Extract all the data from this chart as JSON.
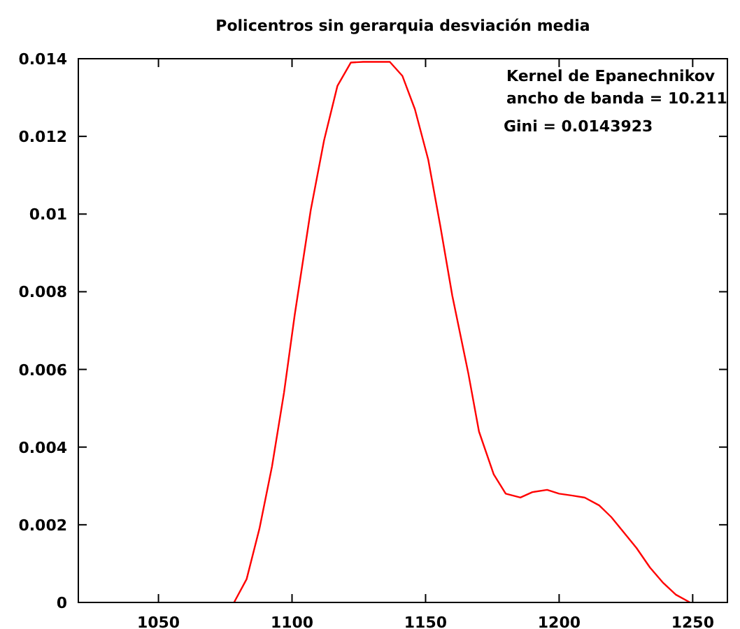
{
  "chart_data": {
    "type": "line",
    "title": "Policentros sin gerarquia desviación media",
    "annotations": [
      "Kernel de Epanechnikov",
      "ancho de banda = 10.211",
      "Gini = 0.0143923"
    ],
    "series": [
      {
        "color": "#ff0000",
        "x": [
          1078.3,
          1083,
          1087.8,
          1092.5,
          1097,
          1101,
          1107,
          1112,
          1117,
          1122,
          1126.6,
          1136.6,
          1141.3,
          1146,
          1151,
          1155.5,
          1160,
          1166,
          1170,
          1175.5,
          1180,
          1185.5,
          1190,
          1195.5,
          1200,
          1205,
          1209.6,
          1215,
          1219.5,
          1229,
          1234,
          1239,
          1243.7,
          1249
        ],
        "values": [
          0,
          0.0006,
          0.0019,
          0.0035,
          0.0054,
          0.0074,
          0.0101,
          0.0119,
          0.0133,
          0.0139,
          0.01392,
          0.01392,
          0.01356,
          0.0127,
          0.0114,
          0.0097,
          0.0079,
          0.0059,
          0.0044,
          0.0033,
          0.0028,
          0.0027,
          0.00284,
          0.0029,
          0.0028,
          0.00275,
          0.0027,
          0.0025,
          0.0022,
          0.0014,
          0.0009,
          0.0005,
          0.0002,
          0
        ]
      }
    ],
    "xlim": [
      1020,
      1263
    ],
    "xticks": [
      1050,
      1100,
      1150,
      1200,
      1250
    ],
    "ylim": [
      0,
      0.014
    ],
    "yticks": [
      0,
      0.002,
      0.004,
      0.006,
      0.008,
      0.01,
      0.012,
      0.014
    ],
    "grid": false,
    "line_style": "solid",
    "marker": "none"
  }
}
